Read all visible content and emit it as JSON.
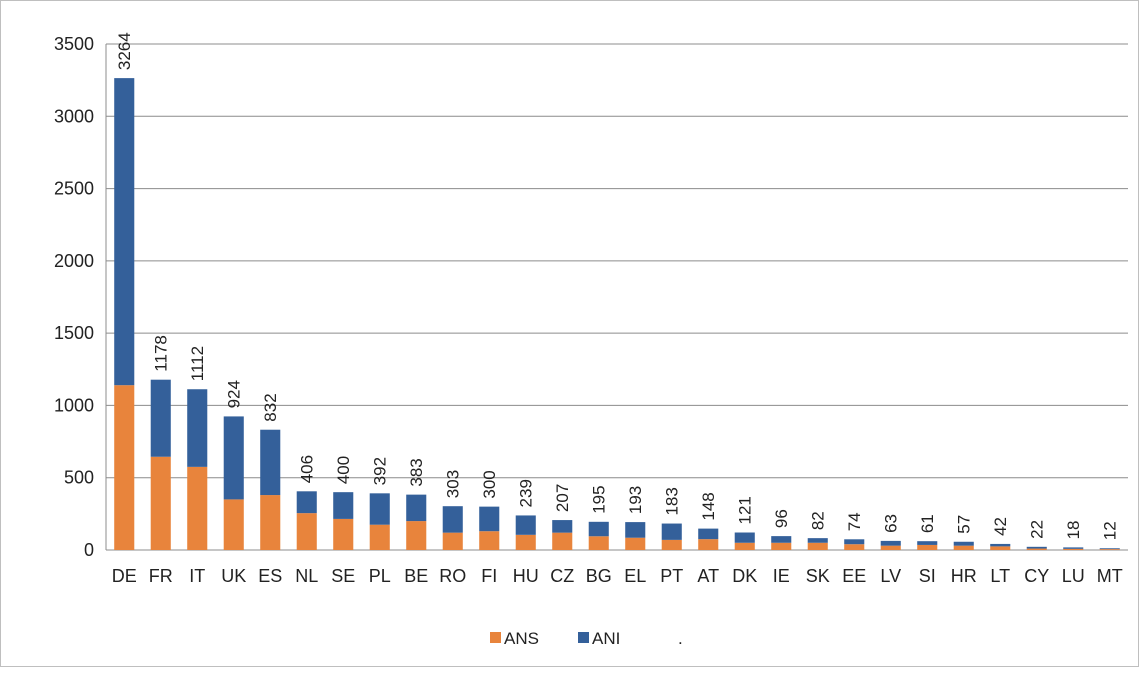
{
  "chart_data": {
    "type": "bar",
    "stacked": true,
    "categories": [
      "DE",
      "FR",
      "IT",
      "UK",
      "ES",
      "NL",
      "SE",
      "PL",
      "BE",
      "RO",
      "FI",
      "HU",
      "CZ",
      "BG",
      "EL",
      "PT",
      "AT",
      "DK",
      "IE",
      "SK",
      "EE",
      "LV",
      "SI",
      "HR",
      "LT",
      "CY",
      "LU",
      "MT"
    ],
    "series": [
      {
        "name": "ANS",
        "color": "#e8843c",
        "values": [
          1140,
          645,
          575,
          350,
          380,
          255,
          215,
          175,
          200,
          120,
          130,
          105,
          120,
          95,
          85,
          70,
          75,
          50,
          50,
          50,
          40,
          30,
          35,
          30,
          25,
          10,
          8,
          6
        ]
      },
      {
        "name": "ANI",
        "color": "#34609a",
        "values": [
          2124,
          533,
          537,
          574,
          452,
          151,
          185,
          217,
          183,
          183,
          170,
          134,
          87,
          100,
          108,
          113,
          73,
          71,
          46,
          32,
          34,
          33,
          26,
          27,
          17,
          12,
          10,
          6
        ]
      }
    ],
    "totals": [
      3264,
      1178,
      1112,
      924,
      832,
      406,
      400,
      392,
      383,
      303,
      300,
      239,
      207,
      195,
      193,
      183,
      148,
      121,
      96,
      82,
      74,
      63,
      61,
      57,
      42,
      22,
      18,
      12
    ],
    "ylim": [
      0,
      3500
    ],
    "yticks": [
      0,
      500,
      1000,
      1500,
      2000,
      2500,
      3000,
      3500
    ],
    "grid": true,
    "legend": {
      "position": "bottom",
      "entries": [
        "ANS",
        "ANI"
      ],
      "trailing_mark": "."
    }
  }
}
